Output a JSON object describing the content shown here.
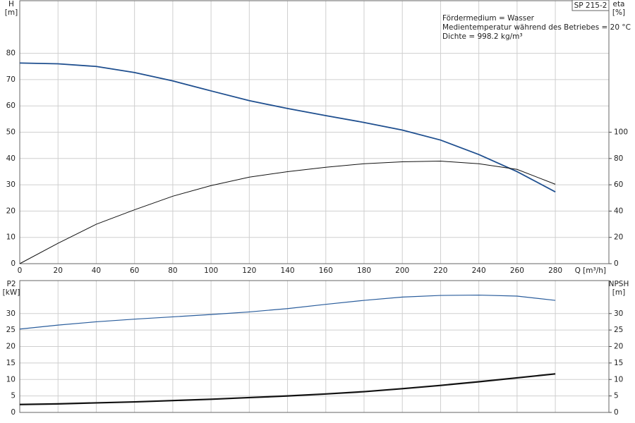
{
  "chart_data": [
    {
      "type": "line",
      "title": "SP 215-2",
      "annotations": [
        "Fördermedium = Wasser",
        "Medientemperatur während des Betriebes = 20 °C",
        "Dichte = 998.2 kg/m³"
      ],
      "ylabel": [
        "H",
        "[m]"
      ],
      "y2label": [
        "eta",
        "[%]"
      ],
      "xlabel": "Q [m³/h]",
      "x": [
        0,
        20,
        40,
        60,
        80,
        100,
        120,
        140,
        160,
        180,
        200,
        220,
        240,
        260,
        280
      ],
      "xlim": [
        0,
        308
      ],
      "xticks": [
        0,
        20,
        40,
        60,
        80,
        100,
        120,
        140,
        160,
        180,
        200,
        220,
        240,
        260,
        280
      ],
      "show_xtick_labels": true,
      "ylim": [
        0,
        100
      ],
      "yticks": [
        0,
        10,
        20,
        30,
        40,
        50,
        60,
        70,
        80
      ],
      "y2lim": [
        0,
        200
      ],
      "y2ticks": [
        0,
        20,
        40,
        60,
        80,
        100
      ],
      "grid": true,
      "series": [
        {
          "color": "#1f4f8f",
          "width": 1.8,
          "values": [
            76.3,
            76,
            75,
            72.7,
            69.5,
            65.7,
            62,
            59,
            56.3,
            53.7,
            50.8,
            47,
            41.5,
            35,
            27.3
          ]
        },
        {
          "color": "#111111",
          "width": 1,
          "axis": "y2",
          "values": [
            0,
            15.5,
            30,
            41,
            51.3,
            59.4,
            65.8,
            70,
            73.3,
            76,
            77.5,
            78,
            76,
            71.7,
            60.4
          ]
        }
      ]
    },
    {
      "type": "line",
      "ylabel": [
        "P2",
        "[kW]"
      ],
      "y2label": [
        "NPSH",
        "[m]"
      ],
      "x": [
        0,
        20,
        40,
        60,
        80,
        100,
        120,
        140,
        160,
        180,
        200,
        220,
        240,
        260,
        280
      ],
      "xlim": [
        0,
        308
      ],
      "xticks": [
        0,
        20,
        40,
        60,
        80,
        100,
        120,
        140,
        160,
        180,
        200,
        220,
        240,
        260,
        280
      ],
      "show_xtick_labels": false,
      "ylim": [
        0,
        40
      ],
      "yticks": [
        0,
        5,
        10,
        15,
        20,
        25,
        30
      ],
      "y2lim": [
        0,
        40
      ],
      "y2ticks": [
        0,
        5,
        10,
        15,
        20,
        25,
        30
      ],
      "grid": true,
      "series": [
        {
          "color": "#2a5d9c",
          "width": 1.2,
          "values": [
            25.3,
            26.5,
            27.5,
            28.3,
            29,
            29.7,
            30.5,
            31.5,
            32.8,
            34,
            35,
            35.5,
            35.6,
            35.3,
            34
          ]
        },
        {
          "color": "#111111",
          "width": 2.2,
          "axis": "y2",
          "values": [
            2.4,
            2.6,
            2.9,
            3.2,
            3.6,
            4,
            4.5,
            5,
            5.6,
            6.3,
            7.2,
            8.2,
            9.3,
            10.5,
            11.7
          ]
        }
      ]
    }
  ]
}
